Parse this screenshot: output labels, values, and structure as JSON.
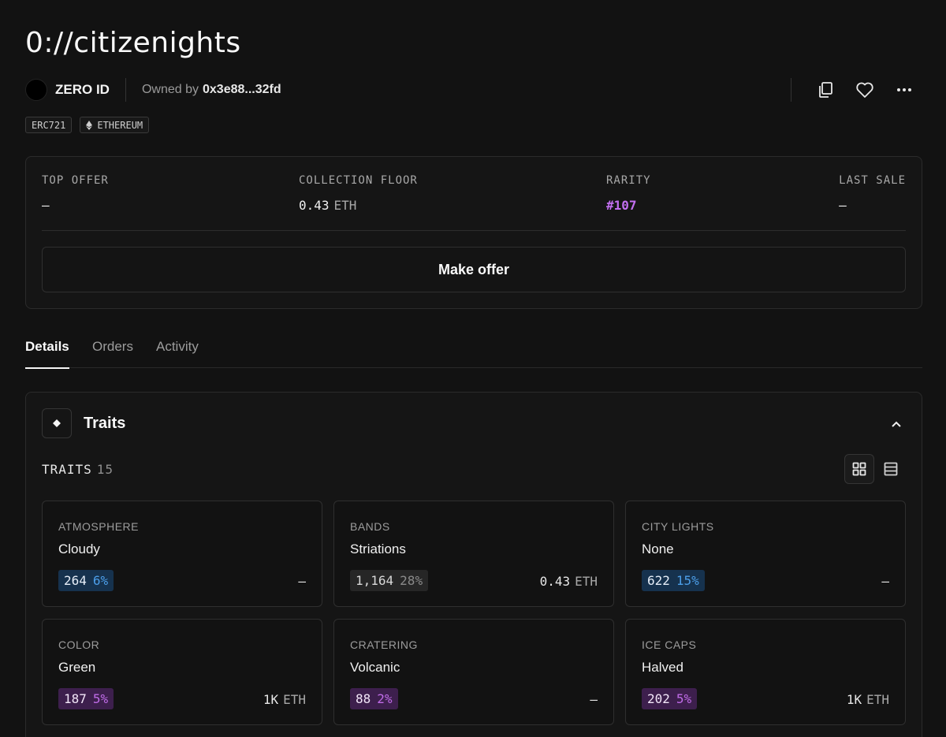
{
  "title": "0://citizenights",
  "creator": {
    "name": "ZERO ID"
  },
  "owner": {
    "label": "Owned by",
    "address": "0x3e88...32fd"
  },
  "tags": [
    {
      "label": "ERC721"
    },
    {
      "label": "ETHEREUM",
      "icon": "ethereum-icon"
    }
  ],
  "stats": {
    "top_offer": {
      "label": "TOP OFFER",
      "value": "–"
    },
    "collection_floor": {
      "label": "COLLECTION FLOOR",
      "value": "0.43",
      "unit": "ETH"
    },
    "rarity": {
      "label": "RARITY",
      "value": "#107",
      "color": "#c26ff0"
    },
    "last_sale": {
      "label": "LAST SALE",
      "value": "–"
    }
  },
  "make_offer_label": "Make offer",
  "tabs": [
    {
      "label": "Details",
      "active": true
    },
    {
      "label": "Orders",
      "active": false
    },
    {
      "label": "Activity",
      "active": false
    }
  ],
  "traits_section": {
    "title": "Traits",
    "count_label": "TRAITS",
    "count": "15"
  },
  "traits": [
    {
      "type": "ATMOSPHERE",
      "value": "Cloudy",
      "count": "264",
      "percent": "6%",
      "badge": "blue",
      "price": "–",
      "price_unit": ""
    },
    {
      "type": "BANDS",
      "value": "Striations",
      "count": "1,164",
      "percent": "28%",
      "badge": "gray",
      "price": "0.43",
      "price_unit": "ETH"
    },
    {
      "type": "CITY LIGHTS",
      "value": "None",
      "count": "622",
      "percent": "15%",
      "badge": "blue",
      "price": "–",
      "price_unit": ""
    },
    {
      "type": "COLOR",
      "value": "Green",
      "count": "187",
      "percent": "5%",
      "badge": "purple",
      "price": "1K",
      "price_unit": "ETH"
    },
    {
      "type": "CRATERING",
      "value": "Volcanic",
      "count": "88",
      "percent": "2%",
      "badge": "purple",
      "price": "–",
      "price_unit": ""
    },
    {
      "type": "ICE CAPS",
      "value": "Halved",
      "count": "202",
      "percent": "5%",
      "badge": "purple",
      "price": "1K",
      "price_unit": "ETH"
    }
  ],
  "colors": {
    "background": "#121212",
    "accent_purple": "#c26ff0",
    "badge_blue": "#16324e",
    "badge_purple": "#3d1f4d"
  }
}
